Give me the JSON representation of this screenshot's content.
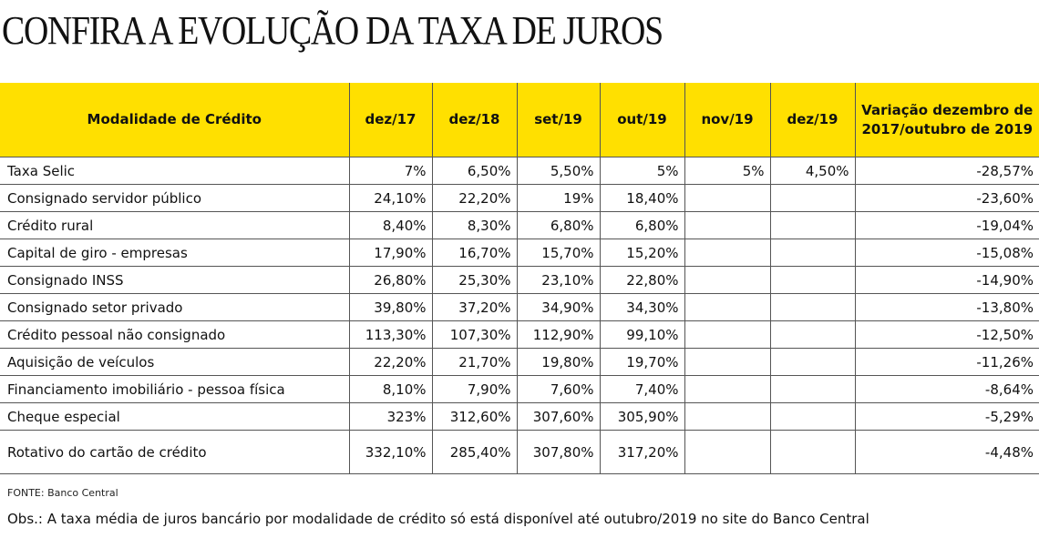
{
  "title": "CONFIRA A EVOLUÇÃO DA TAXA DE JUROS",
  "chart_data": {
    "type": "table",
    "columns": [
      "Modalidade de Crédito",
      "dez/17",
      "dez/18",
      "set/19",
      "out/19",
      "nov/19",
      "dez/19",
      "Variação dezembro de 2017/outubro de 2019"
    ],
    "rows": [
      [
        "Taxa Selic",
        "7%",
        "6,50%",
        "5,50%",
        "5%",
        "5%",
        "4,50%",
        "-28,57%"
      ],
      [
        "Consignado servidor público",
        "24,10%",
        "22,20%",
        "19%",
        "18,40%",
        "",
        "",
        "-23,60%"
      ],
      [
        "Crédito rural",
        "8,40%",
        "8,30%",
        "6,80%",
        "6,80%",
        "",
        "",
        "-19,04%"
      ],
      [
        "Capital de giro - empresas",
        "17,90%",
        "16,70%",
        "15,70%",
        "15,20%",
        "",
        "",
        "-15,08%"
      ],
      [
        "Consignado INSS",
        "26,80%",
        "25,30%",
        "23,10%",
        "22,80%",
        "",
        "",
        "-14,90%"
      ],
      [
        "Consignado setor privado",
        "39,80%",
        "37,20%",
        "34,90%",
        "34,30%",
        "",
        "",
        "-13,80%"
      ],
      [
        "Crédito pessoal não consignado",
        "113,30%",
        "107,30%",
        "112,90%",
        "99,10%",
        "",
        "",
        "-12,50%"
      ],
      [
        "Aquisição de veículos",
        "22,20%",
        "21,70%",
        "19,80%",
        "19,70%",
        "",
        "",
        "-11,26%"
      ],
      [
        "Financiamento imobiliário - pessoa física",
        "8,10%",
        "7,90%",
        "7,60%",
        "7,40%",
        "",
        "",
        "-8,64%"
      ],
      [
        "Cheque especial",
        "323%",
        "312,60%",
        "307,60%",
        "305,90%",
        "",
        "",
        "-5,29%"
      ],
      [
        "Rotativo do cartão de crédito",
        "332,10%",
        "285,40%",
        "307,80%",
        "317,20%",
        "",
        "",
        "-4,48%"
      ]
    ]
  },
  "source": "FONTE: Banco Central",
  "note": "Obs.: A taxa média de juros bancário por modalidade de crédito só está disponível até outubro/2019 no site do Banco Central",
  "colors": {
    "header_bg": "#ffe000",
    "border": "#555555",
    "text": "#111111"
  }
}
